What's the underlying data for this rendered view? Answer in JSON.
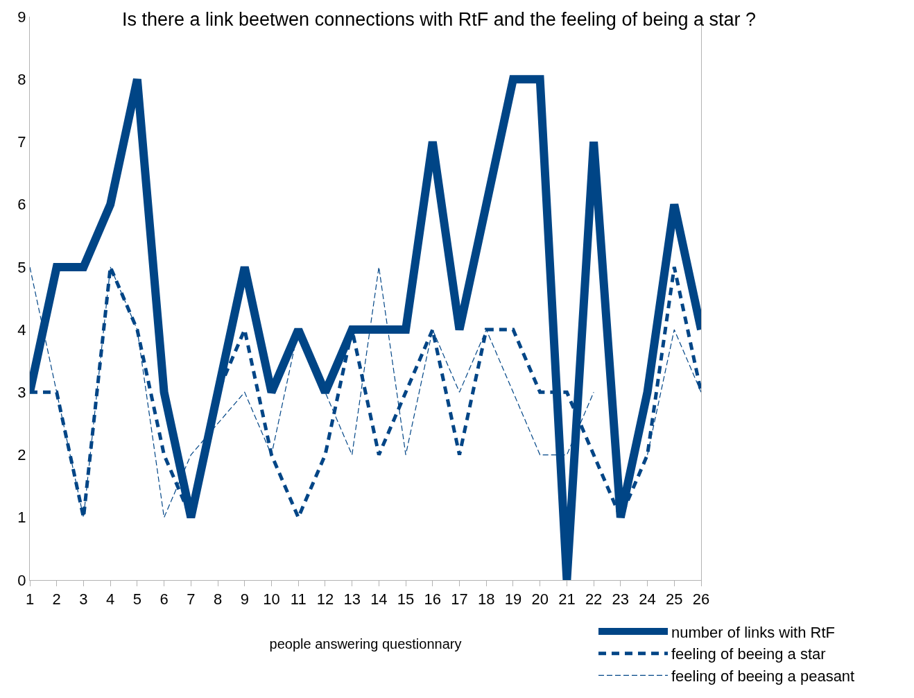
{
  "chart_data": {
    "type": "line",
    "title": "Is there a link beetwen connections with RtF and the feeling of being a star ?",
    "xlabel": "people answering questionnary",
    "x": [
      1,
      2,
      3,
      4,
      5,
      6,
      7,
      8,
      9,
      10,
      11,
      12,
      13,
      14,
      15,
      16,
      17,
      18,
      19,
      20,
      21,
      22,
      23,
      24,
      25,
      26
    ],
    "series": [
      {
        "name": "number of links with RtF",
        "color": "#004586",
        "line_style": "solid",
        "values": [
          3,
          5,
          5,
          6,
          8,
          3,
          1,
          3,
          5,
          3,
          4,
          3,
          4,
          4,
          4,
          7,
          4,
          6,
          8,
          8,
          0,
          7,
          1,
          3,
          6,
          4
        ]
      },
      {
        "name": "feeling of beeing a star",
        "color": "#004586",
        "line_style": "dashed",
        "values": [
          3,
          3,
          1,
          5,
          4,
          2,
          1,
          3,
          4,
          2,
          1,
          2,
          4,
          2,
          3,
          4,
          2,
          4,
          4,
          3,
          3,
          2,
          1,
          2,
          5,
          3
        ]
      },
      {
        "name": "feeling of beeing a peasant",
        "color": "#004586",
        "line_style": "dashed",
        "values": [
          5,
          3,
          1,
          5,
          4,
          1,
          2,
          2.5,
          3,
          2,
          4,
          3,
          2,
          5,
          2,
          4,
          3,
          4,
          3,
          2,
          2,
          3,
          null,
          2,
          4,
          3
        ]
      }
    ],
    "xlim": [
      1,
      26
    ],
    "xticks": [
      1,
      2,
      3,
      4,
      5,
      6,
      7,
      8,
      9,
      10,
      11,
      12,
      13,
      14,
      15,
      16,
      17,
      18,
      19,
      20,
      21,
      22,
      23,
      24,
      25,
      26
    ],
    "ylim": [
      0,
      9
    ],
    "yticks": [
      0,
      1,
      2,
      3,
      4,
      5,
      6,
      7,
      8,
      9
    ],
    "legend": "bottom right",
    "marker": "none"
  }
}
